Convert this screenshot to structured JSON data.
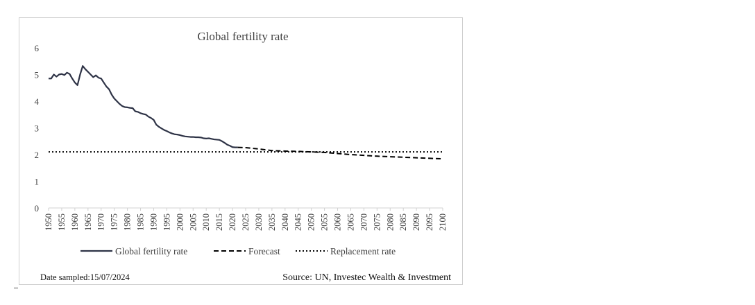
{
  "chart_data": {
    "type": "line",
    "title": "Global fertility rate",
    "xlabel": "",
    "ylabel": "",
    "ylim": [
      0,
      6
    ],
    "xlim": [
      1950,
      2100
    ],
    "yticks": [
      0,
      1,
      2,
      3,
      4,
      5,
      6
    ],
    "xticks": [
      1950,
      1955,
      1960,
      1965,
      1970,
      1975,
      1980,
      1985,
      1990,
      1995,
      2000,
      2005,
      2010,
      2015,
      2020,
      2025,
      2030,
      2035,
      2040,
      2045,
      2050,
      2055,
      2060,
      2065,
      2070,
      2075,
      2080,
      2085,
      2090,
      2095,
      2100
    ],
    "grid": false,
    "legend_position": "bottom",
    "series": [
      {
        "name": "Global fertility rate",
        "style": "solid",
        "color": "#2e3346",
        "points": [
          [
            1950,
            4.85
          ],
          [
            1951,
            4.85
          ],
          [
            1952,
            5.0
          ],
          [
            1953,
            4.92
          ],
          [
            1954,
            5.0
          ],
          [
            1955,
            5.02
          ],
          [
            1956,
            4.98
          ],
          [
            1957,
            5.07
          ],
          [
            1958,
            5.02
          ],
          [
            1959,
            4.85
          ],
          [
            1960,
            4.7
          ],
          [
            1961,
            4.6
          ],
          [
            1962,
            5.0
          ],
          [
            1963,
            5.32
          ],
          [
            1964,
            5.2
          ],
          [
            1965,
            5.1
          ],
          [
            1966,
            5.0
          ],
          [
            1967,
            4.9
          ],
          [
            1968,
            4.97
          ],
          [
            1969,
            4.88
          ],
          [
            1970,
            4.85
          ],
          [
            1971,
            4.7
          ],
          [
            1972,
            4.55
          ],
          [
            1973,
            4.45
          ],
          [
            1974,
            4.25
          ],
          [
            1975,
            4.1
          ],
          [
            1976,
            4.0
          ],
          [
            1977,
            3.9
          ],
          [
            1978,
            3.82
          ],
          [
            1979,
            3.78
          ],
          [
            1980,
            3.77
          ],
          [
            1981,
            3.75
          ],
          [
            1982,
            3.74
          ],
          [
            1983,
            3.62
          ],
          [
            1984,
            3.6
          ],
          [
            1985,
            3.55
          ],
          [
            1986,
            3.52
          ],
          [
            1987,
            3.5
          ],
          [
            1988,
            3.42
          ],
          [
            1989,
            3.37
          ],
          [
            1990,
            3.3
          ],
          [
            1991,
            3.12
          ],
          [
            1992,
            3.04
          ],
          [
            1993,
            2.98
          ],
          [
            1994,
            2.92
          ],
          [
            1995,
            2.88
          ],
          [
            1996,
            2.83
          ],
          [
            1997,
            2.79
          ],
          [
            1998,
            2.76
          ],
          [
            1999,
            2.75
          ],
          [
            2000,
            2.73
          ],
          [
            2001,
            2.7
          ],
          [
            2002,
            2.68
          ],
          [
            2003,
            2.67
          ],
          [
            2004,
            2.66
          ],
          [
            2005,
            2.66
          ],
          [
            2006,
            2.65
          ],
          [
            2007,
            2.65
          ],
          [
            2008,
            2.64
          ],
          [
            2009,
            2.61
          ],
          [
            2010,
            2.6
          ],
          [
            2011,
            2.61
          ],
          [
            2012,
            2.59
          ],
          [
            2013,
            2.57
          ],
          [
            2014,
            2.56
          ],
          [
            2015,
            2.55
          ],
          [
            2016,
            2.5
          ],
          [
            2017,
            2.44
          ],
          [
            2018,
            2.37
          ],
          [
            2019,
            2.33
          ],
          [
            2020,
            2.28
          ],
          [
            2021,
            2.27
          ],
          [
            2022,
            2.27
          ]
        ]
      },
      {
        "name": "Forecast",
        "style": "dashed",
        "color": "#000000",
        "points": [
          [
            2022,
            2.27
          ],
          [
            2025,
            2.26
          ],
          [
            2030,
            2.21
          ],
          [
            2035,
            2.15
          ],
          [
            2040,
            2.13
          ],
          [
            2045,
            2.12
          ],
          [
            2050,
            2.1
          ],
          [
            2055,
            2.08
          ],
          [
            2060,
            2.04
          ],
          [
            2065,
            2.0
          ],
          [
            2070,
            1.97
          ],
          [
            2075,
            1.94
          ],
          [
            2080,
            1.92
          ],
          [
            2085,
            1.9
          ],
          [
            2090,
            1.88
          ],
          [
            2095,
            1.86
          ],
          [
            2100,
            1.84
          ]
        ]
      },
      {
        "name": "Replacement rate",
        "style": "dotted",
        "color": "#000000",
        "points": [
          [
            1950,
            2.1
          ],
          [
            2100,
            2.1
          ]
        ]
      }
    ]
  },
  "footer": {
    "date_sampled": "Date sampled:15/07/2024",
    "source": "Source: UN, Investec Wealth & Investment"
  }
}
